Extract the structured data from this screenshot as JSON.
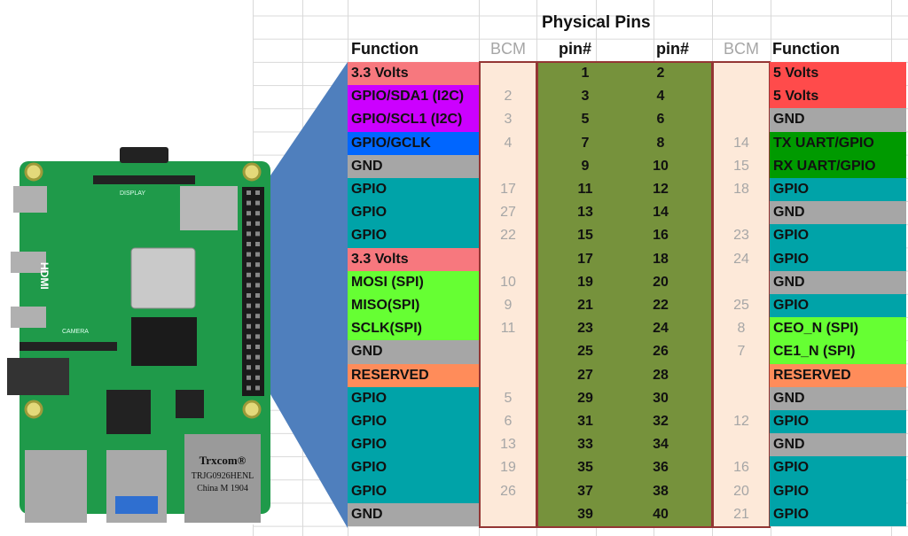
{
  "title": "Physical Pins",
  "headers": {
    "function_left": "Function",
    "bcm_left": "BCM",
    "pin_left": "pin#",
    "pin_right": "pin#",
    "bcm_right": "BCM",
    "function_right": "Function"
  },
  "colors": {
    "3v3": "#f7787e",
    "5v": "#ff4b4b",
    "purple": "#cc00ff",
    "blue": "#0066ff",
    "gnd": "#a6a6a6",
    "teal": "#00a3a8",
    "spi": "#66ff33",
    "uart": "#009a00",
    "reserved": "#ff8c5a",
    "pin_band": "#76923c",
    "bcm_band": "#fde9d9",
    "border": "#943634",
    "connector": "#4f7fbd"
  },
  "rows": [
    {
      "lf": "3.3 Volts",
      "lc": "3v3",
      "lb": "",
      "p1": "1",
      "p2": "2",
      "rb": "",
      "rf": "5 Volts",
      "rc": "5v"
    },
    {
      "lf": "GPIO/SDA1 (I2C)",
      "lc": "purple",
      "lb": "2",
      "p1": "3",
      "p2": "4",
      "rb": "",
      "rf": "5 Volts",
      "rc": "5v"
    },
    {
      "lf": "GPIO/SCL1 (I2C)",
      "lc": "purple",
      "lb": "3",
      "p1": "5",
      "p2": "6",
      "rb": "",
      "rf": "GND",
      "rc": "gnd"
    },
    {
      "lf": "GPIO/GCLK",
      "lc": "blue",
      "lb": "4",
      "p1": "7",
      "p2": "8",
      "rb": "14",
      "rf": "TX UART/GPIO",
      "rc": "uart"
    },
    {
      "lf": "GND",
      "lc": "gnd",
      "lb": "",
      "p1": "9",
      "p2": "10",
      "rb": "15",
      "rf": "RX UART/GPIO",
      "rc": "uart"
    },
    {
      "lf": "GPIO",
      "lc": "teal",
      "lb": "17",
      "p1": "11",
      "p2": "12",
      "rb": "18",
      "rf": "GPIO",
      "rc": "teal"
    },
    {
      "lf": "GPIO",
      "lc": "teal",
      "lb": "27",
      "p1": "13",
      "p2": "14",
      "rb": "",
      "rf": "GND",
      "rc": "gnd"
    },
    {
      "lf": "GPIO",
      "lc": "teal",
      "lb": "22",
      "p1": "15",
      "p2": "16",
      "rb": "23",
      "rf": "GPIO",
      "rc": "teal"
    },
    {
      "lf": "3.3 Volts",
      "lc": "3v3",
      "lb": "",
      "p1": "17",
      "p2": "18",
      "rb": "24",
      "rf": "GPIO",
      "rc": "teal"
    },
    {
      "lf": "MOSI (SPI)",
      "lc": "spi",
      "lb": "10",
      "p1": "19",
      "p2": "20",
      "rb": "",
      "rf": "GND",
      "rc": "gnd"
    },
    {
      "lf": "MISO(SPI)",
      "lc": "spi",
      "lb": "9",
      "p1": "21",
      "p2": "22",
      "rb": "25",
      "rf": "GPIO",
      "rc": "teal"
    },
    {
      "lf": "SCLK(SPI)",
      "lc": "spi",
      "lb": "11",
      "p1": "23",
      "p2": "24",
      "rb": "8",
      "rf": "CEO_N (SPI)",
      "rc": "spi"
    },
    {
      "lf": "GND",
      "lc": "gnd",
      "lb": "",
      "p1": "25",
      "p2": "26",
      "rb": "7",
      "rf": "CE1_N (SPI)",
      "rc": "spi"
    },
    {
      "lf": "RESERVED",
      "lc": "reserved",
      "lb": "",
      "p1": "27",
      "p2": "28",
      "rb": "",
      "rf": "RESERVED",
      "rc": "reserved"
    },
    {
      "lf": "GPIO",
      "lc": "teal",
      "lb": "5",
      "p1": "29",
      "p2": "30",
      "rb": "",
      "rf": "GND",
      "rc": "gnd"
    },
    {
      "lf": "GPIO",
      "lc": "teal",
      "lb": "6",
      "p1": "31",
      "p2": "32",
      "rb": "12",
      "rf": "GPIO",
      "rc": "teal"
    },
    {
      "lf": "GPIO",
      "lc": "teal",
      "lb": "13",
      "p1": "33",
      "p2": "34",
      "rb": "",
      "rf": "GND",
      "rc": "gnd"
    },
    {
      "lf": "GPIO",
      "lc": "teal",
      "lb": "19",
      "p1": "35",
      "p2": "36",
      "rb": "16",
      "rf": "GPIO",
      "rc": "teal"
    },
    {
      "lf": "GPIO",
      "lc": "teal",
      "lb": "26",
      "p1": "37",
      "p2": "38",
      "rb": "20",
      "rf": "GPIO",
      "rc": "teal"
    },
    {
      "lf": "GND",
      "lc": "gnd",
      "lb": "",
      "p1": "39",
      "p2": "40",
      "rb": "21",
      "rf": "GPIO",
      "rc": "teal"
    }
  ],
  "board": {
    "ethernet_label": "Trxcom®",
    "ethernet_part": "TRJG0926HENL",
    "ethernet_origin": "China M 1904",
    "display_label": "DISPLAY",
    "camera_label": "CAMERA",
    "hdmi_label": "HDMI"
  }
}
